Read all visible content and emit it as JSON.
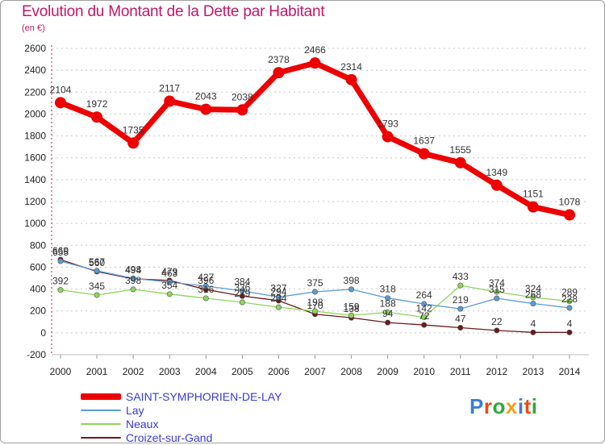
{
  "title": "Evolution du Montant de la Dette par Habitant",
  "subtitle": "(en €)",
  "logo": {
    "text": "Proxiti",
    "letter_colors": [
      "#3a7fd5",
      "#e84c1a",
      "#2eaa3a",
      "#f0a020",
      "#3a7fd5",
      "#e84c1a",
      "#2eaa3a"
    ]
  },
  "chart_data": {
    "type": "line",
    "categories": [
      "2000",
      "2001",
      "2002",
      "2003",
      "2004",
      "2005",
      "2006",
      "2007",
      "2008",
      "2009",
      "2010",
      "2011",
      "2012",
      "2013",
      "2014"
    ],
    "ylim": [
      -200,
      2600
    ],
    "yticks": [
      -200,
      0,
      200,
      400,
      600,
      800,
      1000,
      1200,
      1400,
      1600,
      1800,
      2000,
      2200,
      2400,
      2600
    ],
    "grid": "horizontal dashed",
    "legend_position": "bottom-left",
    "series": [
      {
        "name": "SAINT-SYMPHORIEN-DE-LAY",
        "color": "#ee0000",
        "width": 7,
        "marker": 7,
        "values": [
          2104,
          1972,
          1735,
          2117,
          2043,
          2038,
          2378,
          2466,
          2314,
          1793,
          1637,
          1555,
          1349,
          1151,
          1078
        ]
      },
      {
        "name": "Lay",
        "color": "#5a9bd5",
        "width": 1.3,
        "marker": 3.2,
        "values": [
          655,
          567,
          498,
          463,
          427,
          384,
          327,
          375,
          398,
          318,
          264,
          219,
          315,
          268,
          228
        ]
      },
      {
        "name": "Neaux",
        "color": "#8dd65a",
        "width": 1.3,
        "marker": 3.2,
        "values": [
          392,
          345,
          398,
          354,
          316,
          279,
          234,
          198,
          159,
          188,
          142,
          433,
          374,
          324,
          289
        ]
      },
      {
        "name": "Croizet-sur-Gand",
        "color": "#6b1a1a",
        "width": 1.3,
        "marker": 3.2,
        "values": [
          669,
          560,
          494,
          479,
          396,
          336,
          294,
          170,
          138,
          94,
          72,
          47,
          22,
          4,
          4
        ]
      }
    ]
  }
}
